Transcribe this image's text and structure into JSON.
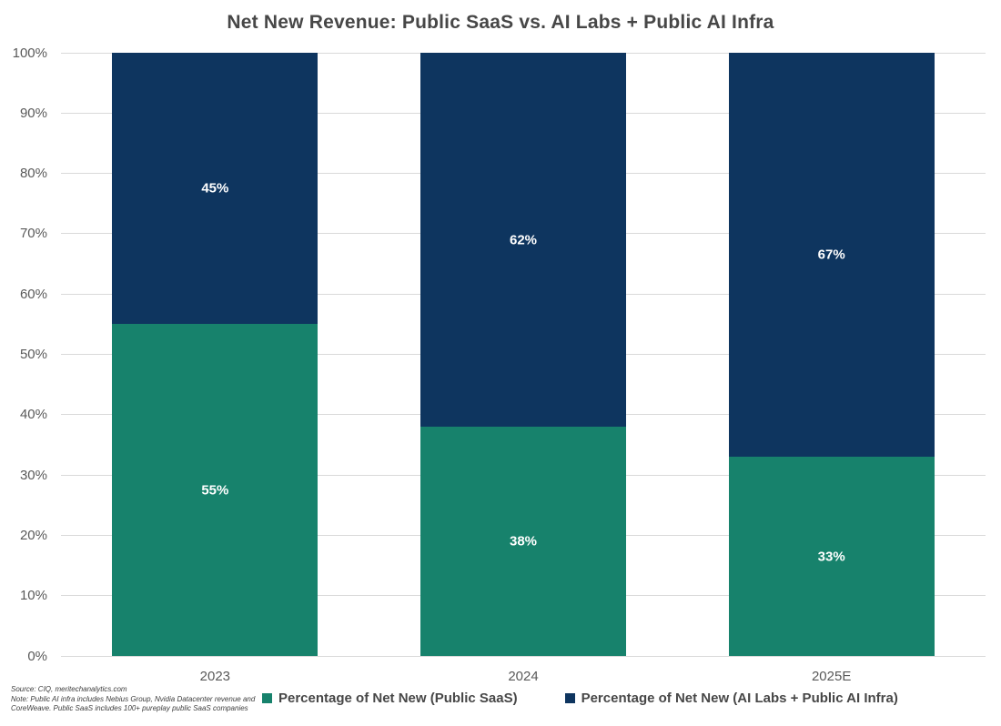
{
  "title": "Net New Revenue: Public SaaS vs. AI Labs + Public AI Infra",
  "source_note": {
    "line1": "Source: CIQ, meritechanalytics.com",
    "line2": "Note: Public AI infra includes Nebius Group, Nvidia Datacenter revenue and",
    "line3": "CoreWeave. Public SaaS includes 100+ pureplay public SaaS companies"
  },
  "colors": {
    "saas_teal": "#17826C",
    "ai_navy": "#0E355F",
    "gridline": "#D9D9D9",
    "axis_text": "#595959",
    "title_text": "#474747",
    "data_label_text": "#FFFFFF"
  },
  "chart_data": {
    "type": "bar",
    "stacked": true,
    "title": "Net New Revenue: Public SaaS vs. AI Labs + Public AI Infra",
    "categories": [
      "2023",
      "2024",
      "2025E"
    ],
    "series": [
      {
        "name": "Percentage of Net New (Public SaaS)",
        "values": [
          55,
          38,
          33
        ],
        "labels": [
          "55%",
          "38%",
          "33%"
        ],
        "color": "#17826C"
      },
      {
        "name": "Percentage of Net New (AI Labs + Public AI Infra)",
        "values": [
          45,
          62,
          67
        ],
        "labels": [
          "45%",
          "62%",
          "67%"
        ],
        "color": "#0E355F"
      }
    ],
    "xlabel": "",
    "ylabel": "",
    "ylim": [
      0,
      100
    ],
    "yticks": [
      0,
      10,
      20,
      30,
      40,
      50,
      60,
      70,
      80,
      90,
      100
    ],
    "ytick_suffix": "%",
    "grid": true,
    "legend_position": "bottom"
  }
}
